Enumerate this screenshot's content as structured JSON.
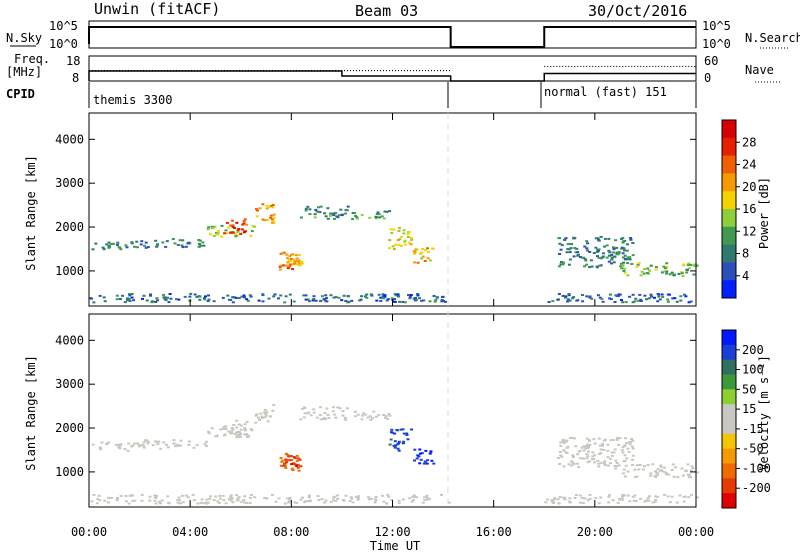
{
  "header": {
    "site": "Unwin (fitACF)",
    "beam": "Beam 03",
    "date": "30/Oct/2016"
  },
  "top_panel": {
    "nsky_label": "N.Sky",
    "nsearch_label": "N.Search",
    "freq_label": "Freq.",
    "freq_unit": "[MHz]",
    "nave_label": "Nave",
    "cpid_label": "CPID",
    "nsky_ticks": [
      "10^5",
      "10^0"
    ],
    "nsearch_ticks": [
      "10^5",
      "10^0"
    ],
    "freq_ticks": [
      "18",
      "8"
    ],
    "nave_ticks": [
      "60",
      "0"
    ],
    "cpid_segments": [
      {
        "name": "themis 3300",
        "start": 0,
        "end": 14.3
      },
      {
        "name": "normal (fast) 151",
        "start": 18,
        "end": 24
      }
    ]
  },
  "colorbars": {
    "power": {
      "label": "Power [dB]",
      "ticks": [
        "4",
        "8",
        "12",
        "16",
        "20",
        "24",
        "28"
      ],
      "colors": [
        "#0020ff",
        "#2a4fb8",
        "#2f7a6e",
        "#3f9a4f",
        "#8ccf3a",
        "#f4d400",
        "#f59a00",
        "#f06000",
        "#e81e00",
        "#d60000"
      ]
    },
    "velocity": {
      "label": "Velocity [m s⁻¹]",
      "ticks": [
        "200",
        "100",
        "50",
        "15",
        "-15",
        "-50",
        "-100",
        "-200"
      ],
      "colors": [
        "#0018ff",
        "#1a3fd8",
        "#2f7060",
        "#3a9a3a",
        "#8cd030",
        "#c8c8c0",
        "#c8c8c0",
        "#f3c400",
        "#f39a00",
        "#ef6a00",
        "#e83a00",
        "#e00000"
      ]
    }
  },
  "chart_data": {
    "type": "heatmap",
    "xlabel": "Time UT",
    "ylabel": "Slant Range [km]",
    "x_ticks": [
      "00:00",
      "04:00",
      "08:00",
      "12:00",
      "16:00",
      "20:00",
      "00:00"
    ],
    "y_ticks": [
      "1000",
      "2000",
      "3000",
      "4000"
    ],
    "xlim_hours": [
      0,
      24
    ],
    "ylim_km": [
      200,
      4600
    ],
    "data_gap_hours": [
      14.3,
      18.0
    ],
    "panels": [
      {
        "name": "Power",
        "colorbar": "power",
        "unit": "dB",
        "range": [
          0,
          30
        ]
      },
      {
        "name": "Velocity",
        "colorbar": "velocity",
        "unit": "m s-1",
        "range": [
          -250,
          250
        ]
      }
    ],
    "echo_regions": [
      {
        "t": [
          0.1,
          2.0
        ],
        "r": [
          1500,
          1700
        ],
        "power": 8,
        "velocity": -5
      },
      {
        "t": [
          2.0,
          4.6
        ],
        "r": [
          1550,
          1750
        ],
        "power": 8,
        "velocity": -5
      },
      {
        "t": [
          4.6,
          6.5
        ],
        "r": [
          1800,
          2050
        ],
        "power": 14,
        "velocity": -5
      },
      {
        "t": [
          5.2,
          6.2
        ],
        "r": [
          1850,
          2200
        ],
        "power": 24,
        "velocity": -5
      },
      {
        "t": [
          6.5,
          7.3
        ],
        "r": [
          2100,
          2550
        ],
        "power": 20,
        "velocity": -5
      },
      {
        "t": [
          7.5,
          8.3
        ],
        "r": [
          1050,
          1450
        ],
        "power": 22,
        "velocity": -140
      },
      {
        "t": [
          7.6,
          8.4
        ],
        "r": [
          1100,
          1400
        ],
        "power": 18,
        "velocity": -200
      },
      {
        "t": [
          8.3,
          10.2
        ],
        "r": [
          2200,
          2500
        ],
        "power": 9,
        "velocity": 0
      },
      {
        "t": [
          10.3,
          11.9
        ],
        "r": [
          2200,
          2400
        ],
        "power": 10,
        "velocity": 0
      },
      {
        "t": [
          11.8,
          12.7
        ],
        "r": [
          1500,
          2000
        ],
        "power": 16,
        "velocity": 180
      },
      {
        "t": [
          12.8,
          13.6
        ],
        "r": [
          1200,
          1550
        ],
        "power": 18,
        "velocity": 200
      },
      {
        "t": [
          18.5,
          21.5
        ],
        "r": [
          1100,
          1800
        ],
        "power": 8,
        "velocity": -5
      },
      {
        "t": [
          21.0,
          24.0
        ],
        "r": [
          900,
          1200
        ],
        "power": 12,
        "velocity": -5
      },
      {
        "t": [
          0.0,
          14.2
        ],
        "r": [
          300,
          500
        ],
        "power": 6,
        "velocity": -5
      },
      {
        "t": [
          18.0,
          24.0
        ],
        "r": [
          300,
          500
        ],
        "power": 6,
        "velocity": -5
      }
    ],
    "sky_noise_level": "10^5",
    "frequency_mhz": [
      {
        "t": [
          0,
          10
        ],
        "value": 12
      },
      {
        "t": [
          10,
          14.3
        ],
        "value": 10
      },
      {
        "t": [
          18,
          24
        ],
        "value": 11
      }
    ],
    "nave": [
      {
        "t": [
          0,
          14.3
        ],
        "value": 25
      },
      {
        "t": [
          18,
          24
        ],
        "value": 35
      }
    ]
  }
}
